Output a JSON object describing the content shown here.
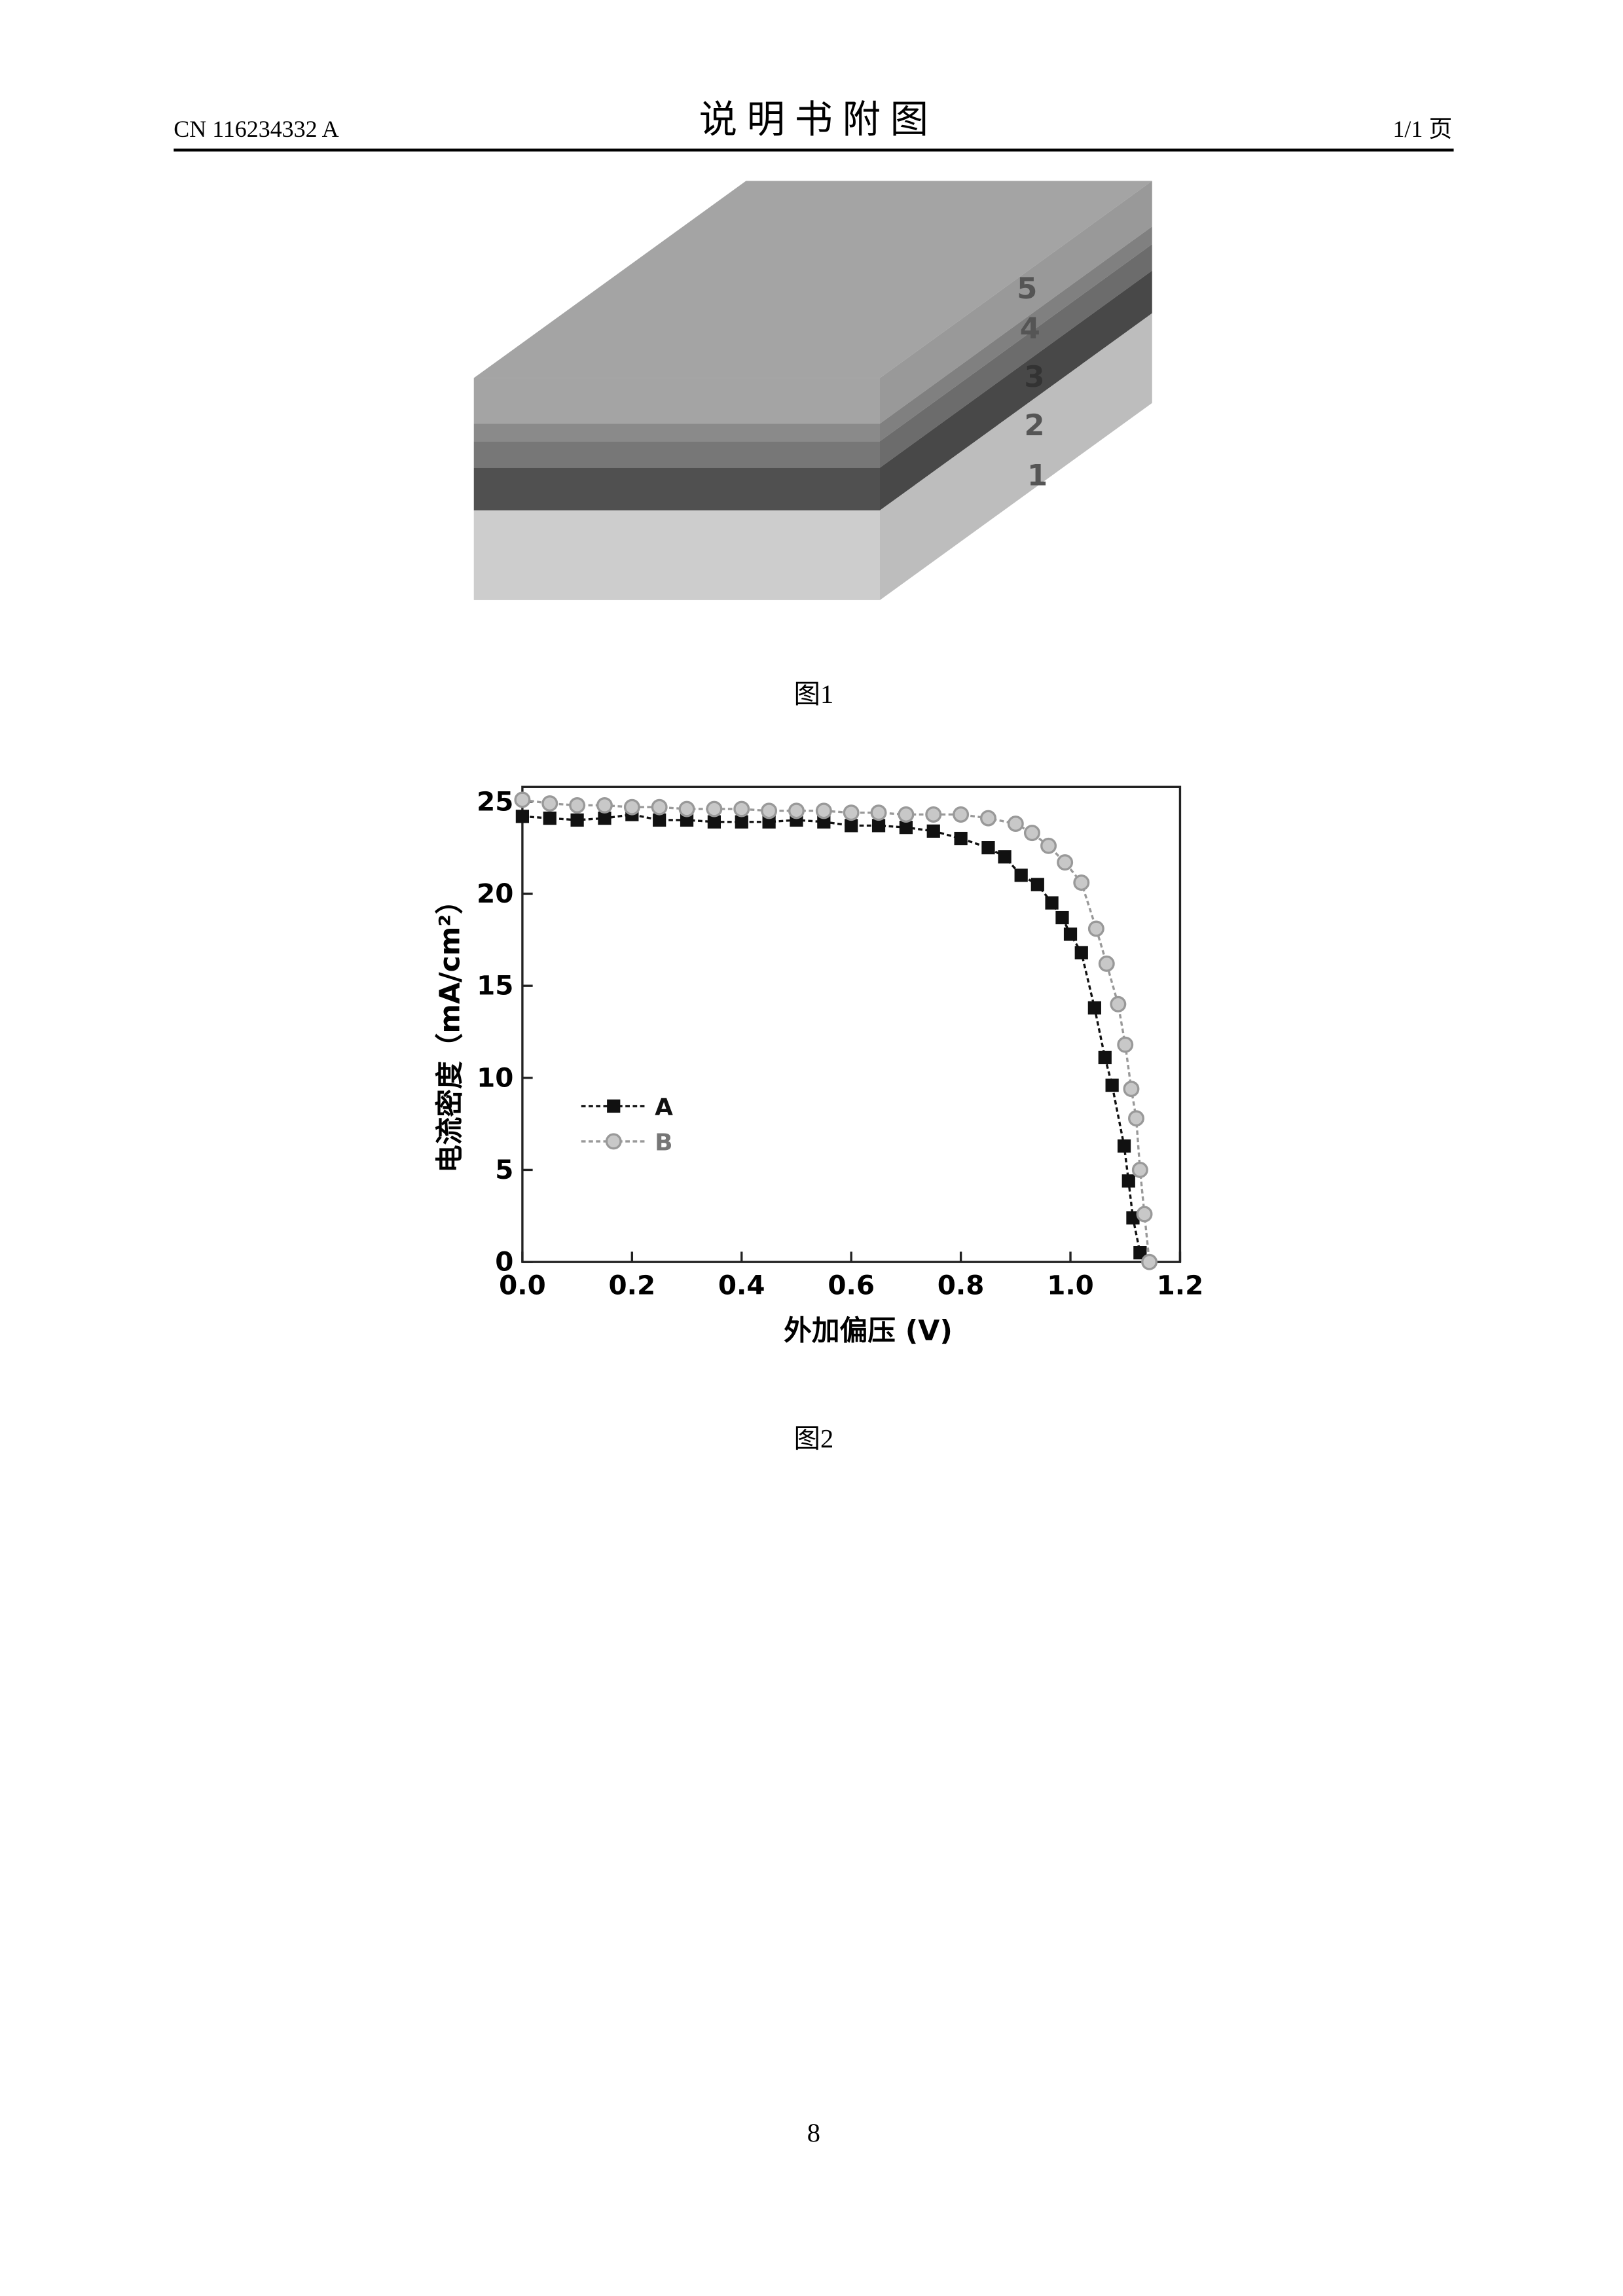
{
  "header": {
    "code": "CN 116234332 A",
    "title": "说 明 书 附 图",
    "page": "1/1 页"
  },
  "figure1": {
    "labels": [
      "5",
      "4",
      "3",
      "2",
      "1"
    ],
    "caption": "图1"
  },
  "chart_data": {
    "type": "line",
    "xlabel": "外加偏压 (V)",
    "ylabel": "电流密度（mA/cm²）",
    "xlim": [
      0,
      1.2
    ],
    "ylim": [
      0,
      25.8
    ],
    "xticks": [
      {
        "value": 0,
        "label": "0.0"
      },
      0.2,
      0.4,
      0.6,
      0.8,
      {
        "value": 1,
        "label": "1.0"
      },
      1.2
    ],
    "yticks": [
      0,
      5,
      10,
      15,
      20,
      25
    ],
    "series": [
      {
        "name": "A",
        "color": "#111111",
        "marker": "square",
        "x": [
          0,
          0.05,
          0.1,
          0.15,
          0.2,
          0.25,
          0.3,
          0.35,
          0.4,
          0.45,
          0.5,
          0.55,
          0.6,
          0.65,
          0.7,
          0.75,
          0.8,
          0.85,
          0.88,
          0.91,
          0.94,
          0.966,
          0.985,
          1.0,
          1.02,
          1.044,
          1.063,
          1.076,
          1.098,
          1.106,
          1.114,
          1.127
        ],
        "values": [
          24.2,
          24.1,
          24.0,
          24.1,
          24.3,
          24.0,
          24.0,
          23.9,
          23.9,
          23.9,
          24.0,
          23.9,
          23.7,
          23.7,
          23.6,
          23.4,
          23.0,
          22.5,
          22.0,
          21.0,
          20.5,
          19.5,
          18.7,
          17.8,
          16.8,
          13.8,
          11.1,
          9.6,
          6.3,
          4.4,
          2.4,
          0.5
        ]
      },
      {
        "name": "B",
        "color": "#999999",
        "marker": "circle",
        "x": [
          0,
          0.05,
          0.1,
          0.15,
          0.2,
          0.25,
          0.3,
          0.35,
          0.4,
          0.45,
          0.5,
          0.55,
          0.6,
          0.65,
          0.7,
          0.75,
          0.8,
          0.85,
          0.9,
          0.93,
          0.96,
          0.99,
          1.02,
          1.047,
          1.066,
          1.087,
          1.1,
          1.111,
          1.12,
          1.127,
          1.135,
          1.144
        ],
        "values": [
          25.1,
          24.9,
          24.8,
          24.8,
          24.7,
          24.7,
          24.6,
          24.6,
          24.6,
          24.5,
          24.5,
          24.5,
          24.4,
          24.4,
          24.3,
          24.3,
          24.3,
          24.1,
          23.8,
          23.3,
          22.6,
          21.7,
          20.6,
          18.1,
          16.2,
          14.0,
          11.8,
          9.4,
          7.8,
          5.0,
          2.6,
          0
        ]
      }
    ]
  },
  "figure2": {
    "caption": "图2"
  },
  "footer": {
    "page_number": "8"
  }
}
